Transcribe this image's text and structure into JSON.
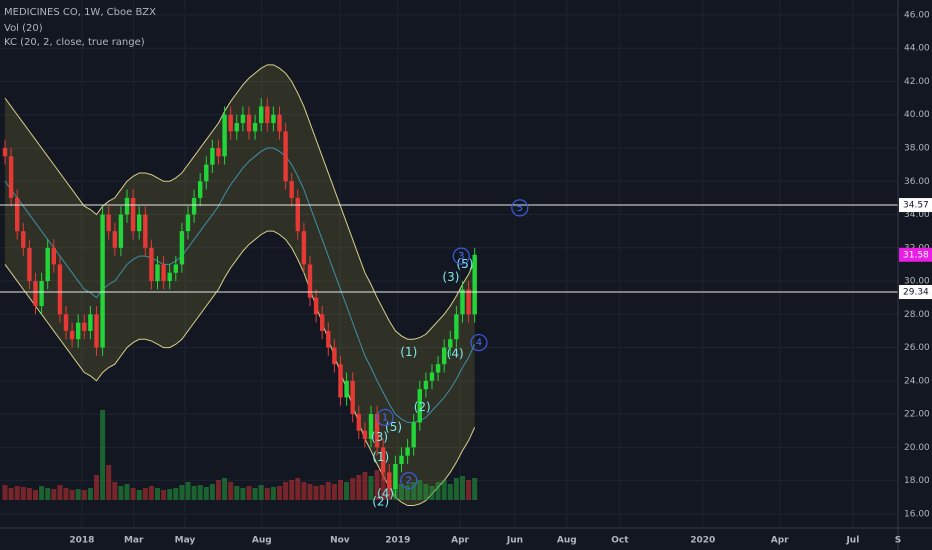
{
  "chart_data": {
    "type": "candlestick",
    "title": "MEDICINES CO, 1W, Cboe BZX",
    "indicators": [
      "Vol (20)",
      "KC (20, 2, close, true range)"
    ],
    "xlim": [
      -0.82,
      146.4
    ],
    "xticks": [
      {
        "value": 12.6,
        "label": "2018"
      },
      {
        "value": 21.1,
        "label": "Mar"
      },
      {
        "value": 29.5,
        "label": "May"
      },
      {
        "value": 42.1,
        "label": "Aug"
      },
      {
        "value": 54.9,
        "label": "Nov"
      },
      {
        "value": 64.4,
        "label": "2019"
      },
      {
        "value": 74.6,
        "label": "Apr"
      },
      {
        "value": 83.6,
        "label": "Jun"
      },
      {
        "value": 92.1,
        "label": "Aug"
      },
      {
        "value": 100.8,
        "label": "Oct"
      },
      {
        "value": 114.4,
        "label": "2020"
      },
      {
        "value": 127,
        "label": "Apr"
      },
      {
        "value": 139,
        "label": "Jul"
      },
      {
        "value": 146.4,
        "label": "S"
      }
    ],
    "ylim": [
      15.15,
      46.9
    ],
    "yticks": [
      {
        "value": 16,
        "label": "16.00"
      },
      {
        "value": 18,
        "label": "18.00"
      },
      {
        "value": 20,
        "label": "20.00"
      },
      {
        "value": 22,
        "label": "22.00"
      },
      {
        "value": 24,
        "label": "24.00"
      },
      {
        "value": 26,
        "label": "26.00"
      },
      {
        "value": 28,
        "label": "28.00"
      },
      {
        "value": 30,
        "label": "30.00"
      },
      {
        "value": 32,
        "label": "32.00"
      },
      {
        "value": 34,
        "label": "34.00"
      },
      {
        "value": 36,
        "label": "36.00"
      },
      {
        "value": 38,
        "label": "38.00"
      },
      {
        "value": 40,
        "label": "40.00"
      },
      {
        "value": 42,
        "label": "42.00"
      },
      {
        "value": 44,
        "label": "44.00"
      },
      {
        "value": 46,
        "label": "46.00"
      }
    ],
    "grid": true,
    "up_color": "#22d63a",
    "down_color": "#e53935",
    "open": [
      38,
      37.5,
      35,
      33,
      32,
      30,
      28.5,
      30,
      32,
      31,
      28,
      27,
      26.5,
      27.5,
      27,
      28,
      26,
      34,
      33,
      32,
      34,
      35,
      33,
      34,
      32,
      30,
      31,
      30,
      30.5,
      31,
      33,
      34,
      35,
      36,
      37,
      38,
      37.5,
      40,
      39,
      39.5,
      40,
      39,
      39.5,
      40.5,
      39.5,
      40,
      39,
      36,
      35,
      33,
      31,
      29,
      28,
      27,
      26,
      25,
      23,
      24,
      22,
      21,
      20.5,
      22,
      20,
      18.5,
      17.5,
      19,
      19.5,
      20,
      21.5,
      23.5,
      24,
      24.5,
      25,
      26,
      26.5,
      28,
      29.5,
      28
    ],
    "high": [
      38.5,
      38,
      35.5,
      33.5,
      32.5,
      30.5,
      30.5,
      32.5,
      32.5,
      31.5,
      28.5,
      27.5,
      28,
      28,
      28.5,
      28.5,
      34.5,
      34.5,
      33.5,
      34.5,
      35.5,
      35.5,
      34.5,
      34.5,
      32.5,
      31.5,
      31.5,
      31,
      31.5,
      33.5,
      34.5,
      35.5,
      36.5,
      37.5,
      38.5,
      38.5,
      40.5,
      40.5,
      40,
      40.5,
      40.5,
      40,
      41,
      41,
      40.5,
      40.5,
      39.5,
      36.5,
      35.5,
      33.5,
      31.5,
      29.5,
      28.5,
      27.5,
      26.5,
      25.5,
      24.5,
      24.5,
      22.5,
      21.5,
      22.5,
      22.5,
      20.5,
      19,
      19.5,
      20,
      20.5,
      22,
      24,
      24.5,
      25,
      25.5,
      26.5,
      27,
      28.5,
      30,
      30,
      32
    ],
    "low": [
      37,
      34.5,
      32.5,
      31.5,
      29.5,
      28,
      28,
      29.5,
      30.5,
      27.5,
      26.5,
      26,
      26,
      26.5,
      26.5,
      25.5,
      25.5,
      32.5,
      31.5,
      31.5,
      33.5,
      32.5,
      32.5,
      31.5,
      29.5,
      29.5,
      29.5,
      29.5,
      30,
      30.5,
      32.5,
      33.5,
      34.5,
      35.5,
      36.5,
      37,
      37,
      38.5,
      38.5,
      39,
      38.5,
      38.5,
      39,
      39,
      39,
      38.5,
      35.5,
      34.5,
      32.5,
      30.5,
      28.5,
      27.5,
      26.5,
      25.5,
      24.5,
      22.5,
      22.5,
      21.5,
      20.5,
      20,
      20,
      19.5,
      18,
      17,
      17,
      18.5,
      19,
      19.5,
      21,
      23,
      23.5,
      24,
      24.5,
      25.5,
      26,
      27.5,
      27.5,
      27.5
    ],
    "close": [
      37.5,
      35,
      33,
      32,
      30,
      28.5,
      30,
      32,
      31,
      28,
      27,
      26.5,
      27.5,
      27,
      28,
      26,
      34,
      33,
      32,
      34,
      35,
      33,
      34,
      32,
      30,
      31,
      30,
      30.5,
      31,
      33,
      34,
      35,
      36,
      37,
      38,
      37.5,
      40,
      39,
      39.5,
      40,
      39,
      39.5,
      40.5,
      39.5,
      40,
      39,
      36,
      35,
      33,
      31,
      29,
      28,
      27,
      26,
      25,
      23,
      24,
      22,
      21,
      20.5,
      22,
      20,
      18.5,
      17.5,
      19,
      19.5,
      20,
      21.5,
      23.5,
      24,
      24.5,
      25,
      26,
      26.5,
      28,
      29.5,
      28,
      31.58
    ],
    "volume": [
      15,
      12,
      14,
      13,
      12,
      10,
      14,
      12,
      11,
      15,
      12,
      10,
      11,
      10,
      12,
      25,
      90,
      35,
      18,
      14,
      16,
      12,
      10,
      12,
      14,
      12,
      10,
      11,
      12,
      15,
      18,
      14,
      15,
      13,
      16,
      20,
      22,
      18,
      14,
      12,
      14,
      12,
      15,
      12,
      13,
      14,
      18,
      20,
      22,
      18,
      16,
      14,
      15,
      18,
      16,
      20,
      18,
      22,
      25,
      28,
      24,
      30,
      28,
      20,
      18,
      16,
      15,
      18,
      20,
      16,
      14,
      18,
      20,
      16,
      22,
      24,
      20,
      22
    ],
    "kc_upper": [
      41,
      40.5,
      40,
      39.5,
      39,
      38.5,
      38,
      37.5,
      37,
      36.5,
      36,
      35.5,
      35,
      34.5,
      34.3,
      34,
      34.5,
      34.8,
      35,
      35.5,
      36,
      36.3,
      36.5,
      36.5,
      36.4,
      36.2,
      36,
      36,
      36.2,
      36.5,
      37,
      37.5,
      38,
      38.5,
      39,
      39.5,
      40.2,
      40.8,
      41.3,
      41.8,
      42.2,
      42.5,
      42.8,
      43,
      43,
      42.8,
      42.5,
      42,
      41.3,
      40.5,
      39.5,
      38.5,
      37.5,
      36.5,
      35.5,
      34.5,
      33.5,
      32.5,
      31.5,
      30.5,
      29.8,
      29,
      28.3,
      27.6,
      27,
      26.7,
      26.5,
      26.5,
      26.6,
      26.8,
      27.2,
      27.6,
      28,
      28.5,
      29.1,
      29.8,
      30.4,
      31.2
    ],
    "kc_middle": [
      36,
      35.5,
      35,
      34.5,
      34,
      33.5,
      33,
      32.5,
      32,
      31.5,
      31,
      30.5,
      30,
      29.5,
      29.3,
      29,
      29.5,
      29.8,
      30,
      30.5,
      31,
      31.3,
      31.5,
      31.5,
      31.4,
      31.2,
      31,
      31,
      31.2,
      31.5,
      32,
      32.5,
      33,
      33.5,
      34,
      34.5,
      35.2,
      35.8,
      36.3,
      36.8,
      37.2,
      37.5,
      37.8,
      38,
      38,
      37.8,
      37.5,
      37,
      36.3,
      35.5,
      34.5,
      33.5,
      32.5,
      31.5,
      30.5,
      29.5,
      28.5,
      27.5,
      26.5,
      25.5,
      24.8,
      24,
      23.3,
      22.6,
      22,
      21.7,
      21.5,
      21.5,
      21.6,
      21.8,
      22.2,
      22.6,
      23,
      23.5,
      24.1,
      24.8,
      25.4,
      26.2
    ],
    "kc_lower": [
      31,
      30.5,
      30,
      29.5,
      29,
      28.5,
      28,
      27.5,
      27,
      26.5,
      26,
      25.5,
      25,
      24.5,
      24.3,
      24,
      24.5,
      24.8,
      25,
      25.5,
      26,
      26.3,
      26.5,
      26.5,
      26.4,
      26.2,
      26,
      26,
      26.2,
      26.5,
      27,
      27.5,
      28,
      28.5,
      29,
      29.5,
      30.2,
      30.8,
      31.3,
      31.8,
      32.2,
      32.5,
      32.8,
      33,
      33,
      32.8,
      32.5,
      32,
      31.3,
      30.5,
      29.5,
      28.5,
      27.5,
      26.5,
      25.5,
      24.5,
      23.5,
      22.5,
      21.5,
      20.5,
      19.8,
      19,
      18.3,
      17.6,
      17,
      16.7,
      16.5,
      16.5,
      16.6,
      16.8,
      17.2,
      17.6,
      18,
      18.5,
      19.1,
      19.8,
      20.4,
      21.2
    ],
    "hlines": [
      34.57,
      29.34
    ],
    "annotations": [
      "(1)",
      "(2)",
      "(3)",
      "(4)",
      "(5)",
      "(1)",
      "(2)",
      "(3)",
      "(4)",
      "(5)",
      "1",
      "2",
      "3",
      "4",
      "5"
    ]
  }
}
